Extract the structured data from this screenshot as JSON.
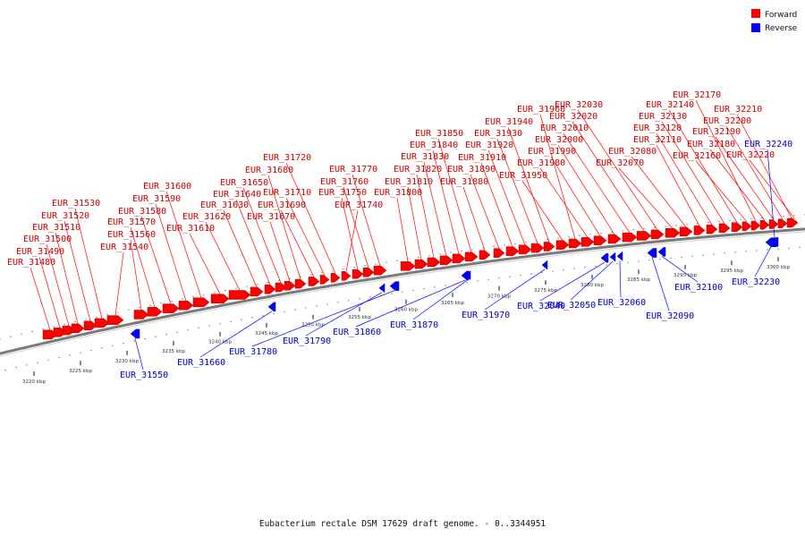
{
  "title": "Eubacterium rectale DSM 17629 draft genome. - 0..3344951",
  "legend": [
    {
      "label": "Forward",
      "color": "#ff0000"
    },
    {
      "label": "Reverse",
      "color": "#0000ff"
    }
  ],
  "axis": {
    "ticks": [
      "3220 kbp",
      "3225 kbp",
      "3230 kbp",
      "3235 kbp",
      "3240 kbp",
      "3245 kbp",
      "3250 kbp",
      "3255 kbp",
      "3260 kbp",
      "3265 kbp",
      "3270 kbp",
      "3275 kbp",
      "3280 kbp",
      "3285 kbp",
      "3290 kbp",
      "3295 kbp",
      "3300 kbp"
    ]
  },
  "genes": {
    "forward": [
      "EUR_31480",
      "EUR_31490",
      "EUR_31500",
      "EUR_31510",
      "EUR_31520",
      "EUR_31530",
      "EUR_31540",
      "EUR_31560",
      "EUR_31570",
      "EUR_31580",
      "EUR_31590",
      "EUR_31600",
      "EUR_31610",
      "EUR_31620",
      "EUR_31630",
      "EUR_31640",
      "EUR_31650",
      "EUR_31670",
      "EUR_31680",
      "EUR_31690",
      "EUR_31710",
      "EUR_31720",
      "EUR_31740",
      "EUR_31750",
      "EUR_31760",
      "EUR_31770",
      "EUR_31800",
      "EUR_31810",
      "EUR_31820",
      "EUR_31830",
      "EUR_31840",
      "EUR_31850",
      "EUR_31880",
      "EUR_31890",
      "EUR_31910",
      "EUR_31920",
      "EUR_31930",
      "EUR_31940",
      "EUR_31950",
      "EUR_31960",
      "EUR_31980",
      "EUR_31990",
      "EUR_32000",
      "EUR_32010",
      "EUR_32020",
      "EUR_32030",
      "EUR_32070",
      "EUR_32080",
      "EUR_32110",
      "EUR_32120",
      "EUR_32130",
      "EUR_32140",
      "EUR_32160",
      "EUR_32170",
      "EUR_32180",
      "EUR_32190",
      "EUR_32200",
      "EUR_32210",
      "EUR_32220"
    ],
    "reverse": [
      "EUR_31550",
      "EUR_31660",
      "EUR_31780",
      "EUR_31790",
      "EUR_31860",
      "EUR_31870",
      "EUR_31970",
      "EUR_32040",
      "EUR_32050",
      "EUR_32060",
      "EUR_32090",
      "EUR_32100",
      "EUR_32230",
      "EUR_32240"
    ]
  }
}
